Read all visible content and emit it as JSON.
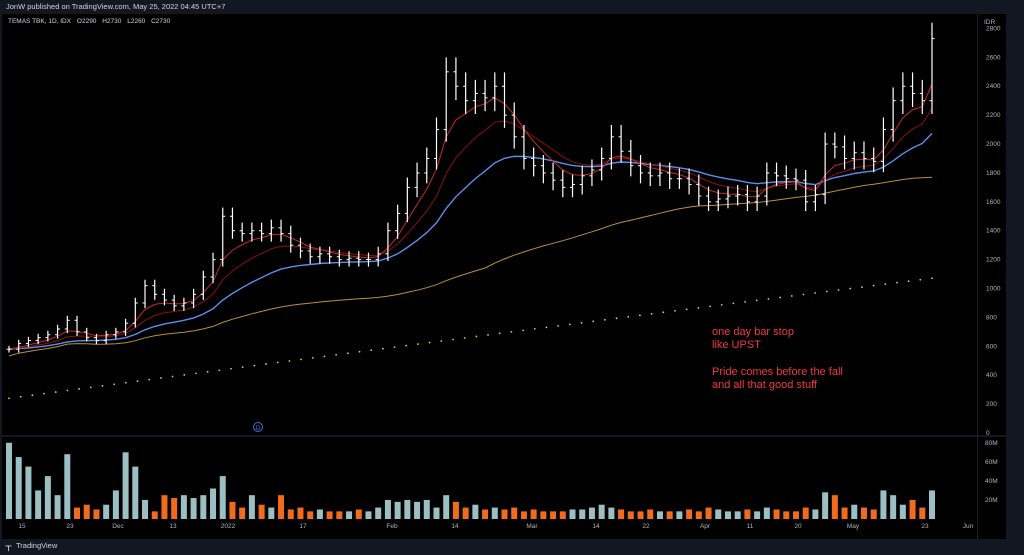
{
  "header": {
    "published": "JonW published on TradingView.com, May 25, 2022 04:45 UTC+7"
  },
  "legend": {
    "symbol": "TEMAS TBK, 1D, IDX",
    "o": "O2290",
    "h": "H2730",
    "l": "L2260",
    "c": "C2730"
  },
  "annotations": {
    "line1": "one day bar stop",
    "line2": "like UPST",
    "line3": "Pride comes before the fall",
    "line4": "and all that good stuff"
  },
  "event_marker": "D",
  "footer": {
    "brand": "TradingView"
  },
  "colors": {
    "background": "#000000",
    "price_bar": "#ffffff",
    "ema_fast": "#c62828",
    "ema_mid": "#8b1010",
    "ma_blue": "#5b8def",
    "ma_gold": "#b8913a",
    "ma_dotted": "#e6c84a",
    "vol_up": "#9cbfc4",
    "vol_down": "#f26b1d",
    "annotation": "#f23645"
  },
  "chart_data": {
    "type": "bar",
    "currency": "IDR",
    "y_ticks": [
      0,
      200,
      400,
      600,
      800,
      1000,
      1200,
      1400,
      1600,
      1800,
      2000,
      2200,
      2400,
      2600,
      2800
    ],
    "ylim": [
      0,
      2900
    ],
    "volume_ticks": [
      "20M",
      "40M",
      "60M",
      "80M"
    ],
    "volume_ylim": [
      0,
      85
    ],
    "x_labels": [
      "15",
      "23",
      "Dec",
      "13",
      "2022",
      "17",
      "Feb",
      "14",
      "Mar",
      "14",
      "22",
      "Apr",
      "11",
      "20",
      "May",
      "23",
      "Jun"
    ],
    "ohlc_close": [
      580,
      620,
      640,
      660,
      680,
      720,
      780,
      700,
      660,
      640,
      680,
      700,
      760,
      900,
      1020,
      960,
      920,
      880,
      900,
      960,
      1080,
      1200,
      1500,
      1400,
      1380,
      1400,
      1380,
      1420,
      1380,
      1300,
      1260,
      1220,
      1240,
      1220,
      1200,
      1210,
      1200,
      1200,
      1240,
      1400,
      1520,
      1700,
      1800,
      1900,
      2100,
      2500,
      2400,
      2300,
      2350,
      2320,
      2400,
      2200,
      2050,
      1900,
      1850,
      1800,
      1750,
      1700,
      1720,
      1780,
      1820,
      1900,
      2050,
      1950,
      1850,
      1800,
      1780,
      1800,
      1760,
      1760,
      1720,
      1640,
      1600,
      1620,
      1640,
      1650,
      1600,
      1640,
      1800,
      1780,
      1760,
      1750,
      1600,
      1650,
      2000,
      1980,
      1900,
      1940,
      1900,
      1880,
      2100,
      2300,
      2400,
      2350,
      2300,
      2730
    ],
    "volume_millions": [
      80,
      65,
      55,
      30,
      45,
      25,
      68,
      12,
      15,
      10,
      15,
      30,
      70,
      55,
      20,
      8,
      25,
      22,
      25,
      22,
      25,
      32,
      45,
      18,
      12,
      25,
      15,
      12,
      25,
      10,
      12,
      8,
      10,
      8,
      8,
      8,
      10,
      8,
      12,
      20,
      18,
      20,
      18,
      20,
      12,
      25,
      18,
      12,
      15,
      10,
      12,
      10,
      12,
      8,
      10,
      8,
      8,
      8,
      10,
      10,
      12,
      15,
      12,
      10,
      8,
      8,
      10,
      8,
      8,
      8,
      10,
      8,
      12,
      10,
      8,
      8,
      10,
      8,
      12,
      10,
      8,
      8,
      12,
      10,
      28,
      25,
      12,
      15,
      12,
      10,
      30,
      25,
      15,
      20,
      12,
      30
    ]
  }
}
